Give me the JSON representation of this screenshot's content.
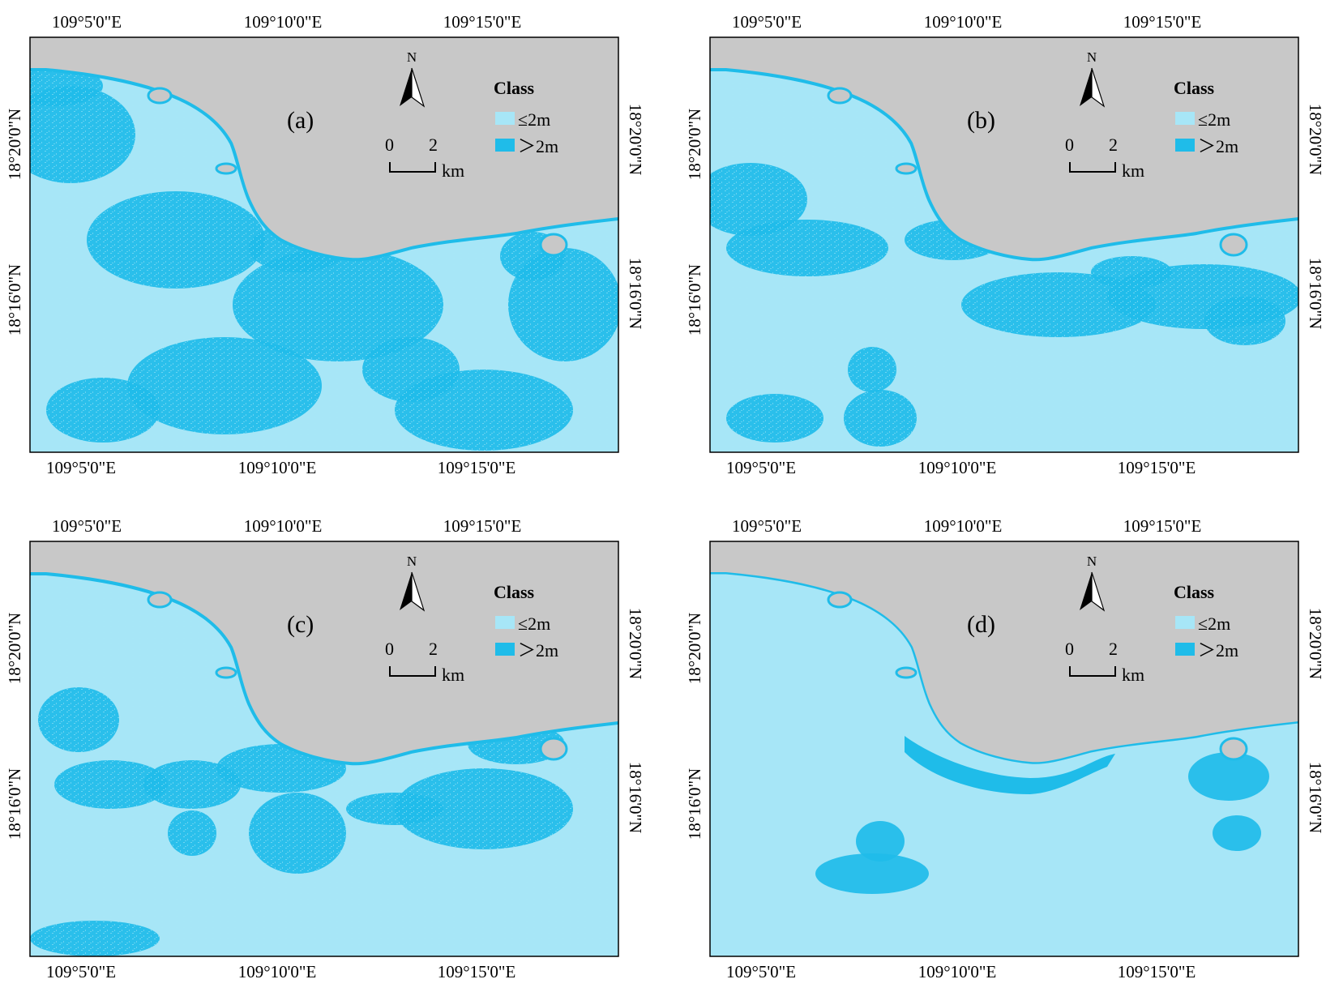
{
  "colors": {
    "land": "#c8c8c8",
    "shallow": "#a7e6f7",
    "deep": "#1fbce9",
    "frame": "#000000"
  },
  "legend": {
    "title": "Class",
    "items": [
      {
        "label": "≤2m",
        "color": "#a7e6f7"
      },
      {
        "label": "＞2m",
        "color": "#1fbce9"
      }
    ]
  },
  "north_arrow": {
    "label": "N"
  },
  "scale_bar": {
    "tick_start": "0",
    "tick_end": "2",
    "unit": "km"
  },
  "axes": {
    "top_ticks": [
      "109°5'0\"E",
      "109°10'0\"E",
      "109°15'0\"E"
    ],
    "bottom_ticks": [
      "109°5'0\"E",
      "109°10'0\"E",
      "109°15'0\"E"
    ],
    "left_ticks": [
      "18°20'0\"N",
      "18°16'0\"N"
    ],
    "right_ticks": [
      "18°20'0\"N",
      "18°16'0\"N"
    ]
  },
  "panels": [
    {
      "id": "a",
      "label": "(a)",
      "deep_extent": "high"
    },
    {
      "id": "b",
      "label": "(b)",
      "deep_extent": "medium"
    },
    {
      "id": "c",
      "label": "(c)",
      "deep_extent": "moderate"
    },
    {
      "id": "d",
      "label": "(d)",
      "deep_extent": "low"
    }
  ]
}
